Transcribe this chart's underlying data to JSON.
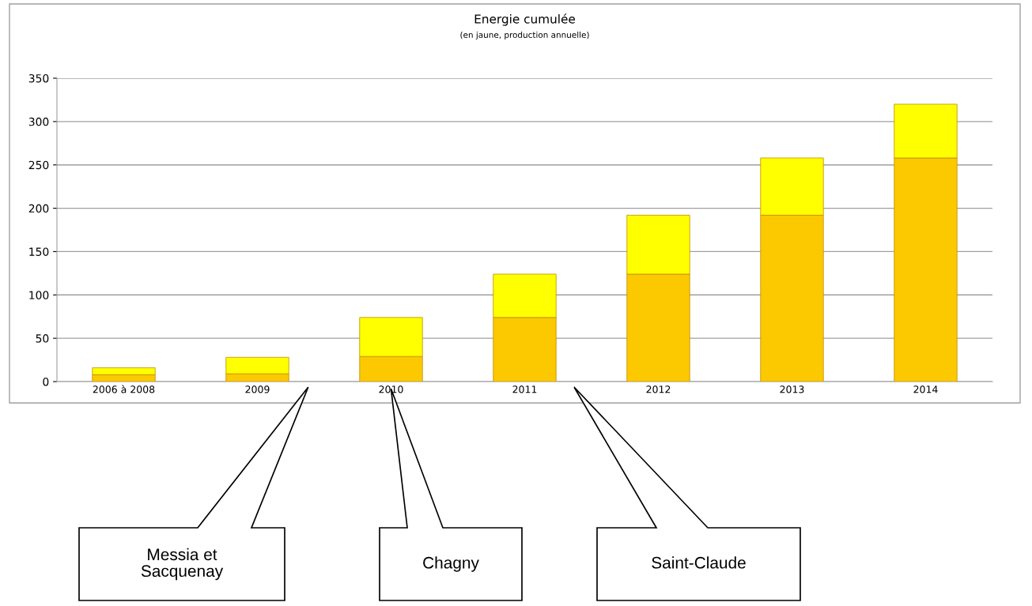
{
  "chart_data": {
    "type": "bar",
    "title": "Energie cumulée",
    "subtitle": "(en jaune, production annuelle)",
    "categories": [
      "2006 à 2008",
      "2009",
      "2010",
      "2011",
      "2012",
      "2013",
      "2014"
    ],
    "stacked": true,
    "series": [
      {
        "color": "#fcc800",
        "values": [
          8,
          9,
          29,
          74,
          124,
          192,
          258
        ]
      },
      {
        "color": "#ffff00",
        "values": [
          8,
          19,
          45,
          50,
          68,
          66,
          62
        ]
      }
    ],
    "ylim": [
      0,
      350
    ],
    "yticks": [
      0,
      50,
      100,
      150,
      200,
      250,
      300,
      350
    ],
    "grid": "y",
    "legend": false,
    "annotations": [
      "Messia et\nSacquenay",
      "Chagny",
      "Saint-Claude"
    ]
  }
}
